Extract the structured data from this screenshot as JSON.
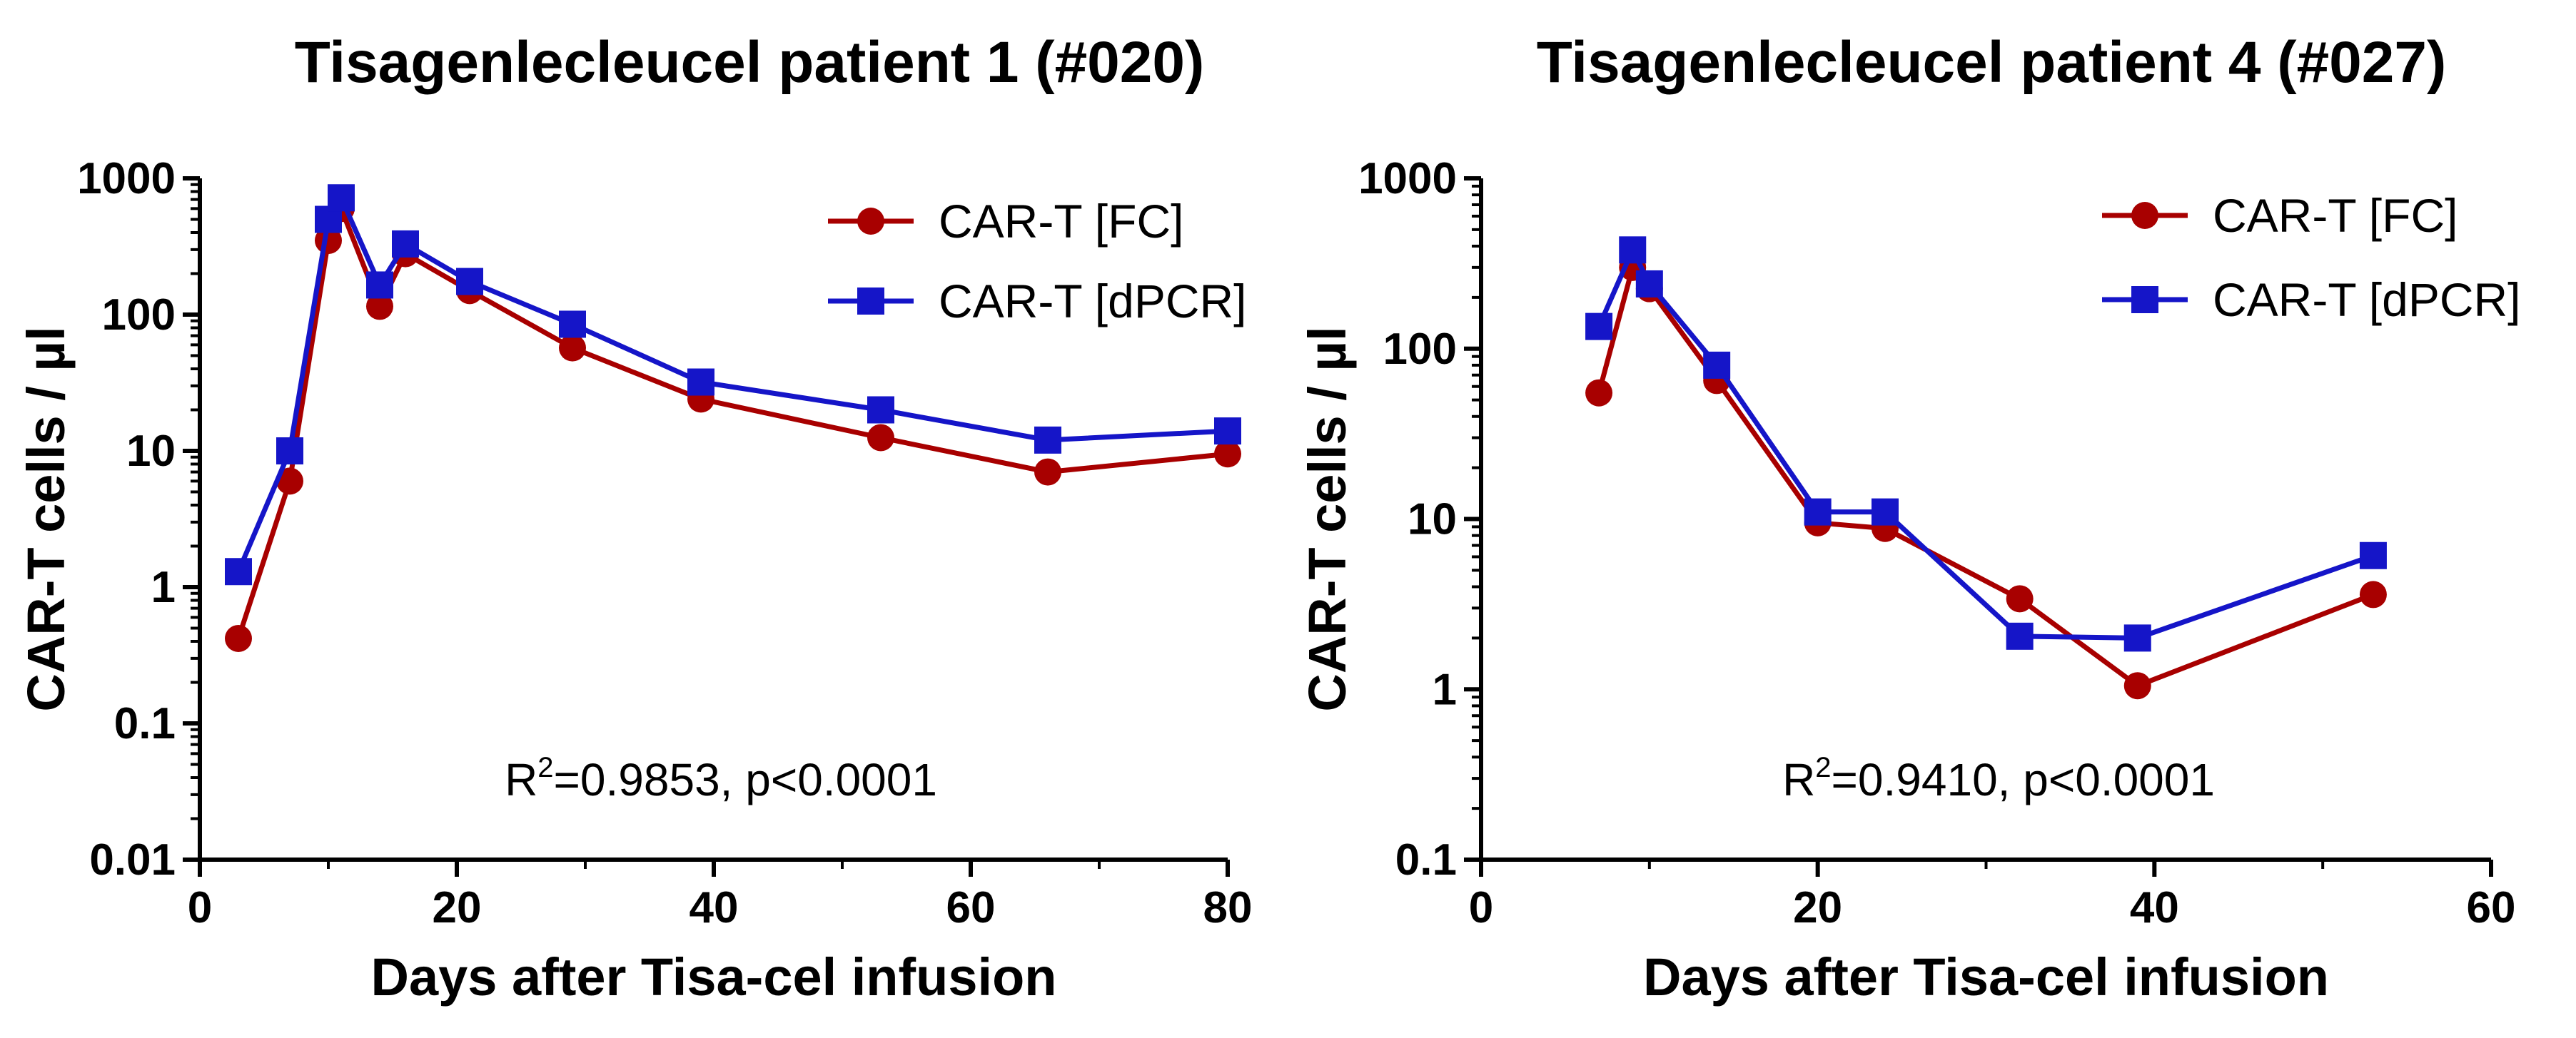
{
  "chart_data": [
    {
      "type": "line",
      "title": "Tisagenlecleucel patient 1 (#020)",
      "xlabel": "Days after Tisa-cel infusion",
      "ylabel": "CAR-T cells / µl",
      "yscale": "log",
      "xlim": [
        0,
        80
      ],
      "ylim": [
        0.01,
        1000
      ],
      "xticks": [
        "0",
        "20",
        "40",
        "60",
        "80"
      ],
      "yticks": [
        "0.01",
        "0.1",
        "1",
        "10",
        "100",
        "1000"
      ],
      "legend_position": "top-right",
      "annotation": {
        "prefix": "R",
        "superscript": "2",
        "suffix": "=0.9853, p<0.0001"
      },
      "series": [
        {
          "name": "CAR-T [FC]",
          "color": "#a80000",
          "marker": "circle",
          "x": [
            3,
            7,
            10,
            11,
            14,
            16,
            21,
            29,
            39,
            53,
            66,
            80
          ],
          "y": [
            0.42,
            6,
            350,
            600,
            115,
            280,
            150,
            57,
            24,
            12.5,
            7,
            9.5
          ]
        },
        {
          "name": "CAR-T [dPCR]",
          "color": "#1515c8",
          "marker": "square",
          "x": [
            3,
            7,
            10,
            11,
            14,
            16,
            21,
            29,
            39,
            53,
            66,
            80
          ],
          "y": [
            1.3,
            10,
            500,
            720,
            165,
            330,
            175,
            85,
            32,
            20,
            12,
            14
          ]
        }
      ]
    },
    {
      "type": "line",
      "title": "Tisagenlecleucel patient 4 (#027)",
      "xlabel": "Days after Tisa-cel infusion",
      "ylabel": "CAR-T cells / µl",
      "yscale": "log",
      "xlim": [
        0,
        60
      ],
      "ylim": [
        0.1,
        1000
      ],
      "xticks": [
        "0",
        "20",
        "40",
        "60"
      ],
      "yticks": [
        "0.1",
        "1",
        "10",
        "100",
        "1000"
      ],
      "legend_position": "top-right",
      "annotation": {
        "prefix": "R",
        "superscript": "2",
        "suffix": "=0.9410, p<0.0001"
      },
      "series": [
        {
          "name": "CAR-T [FC]",
          "color": "#a80000",
          "marker": "circle",
          "x": [
            7,
            9,
            10,
            14,
            20,
            24,
            32,
            39,
            53
          ],
          "y": [
            55,
            300,
            225,
            65,
            9.5,
            8.8,
            3.4,
            1.05,
            3.6
          ]
        },
        {
          "name": "CAR-T [dPCR]",
          "color": "#1515c8",
          "marker": "square",
          "x": [
            7,
            9,
            10,
            14,
            20,
            24,
            32,
            39,
            53
          ],
          "y": [
            135,
            380,
            240,
            80,
            11,
            11,
            2.05,
            2.0,
            6.1
          ]
        }
      ]
    }
  ]
}
